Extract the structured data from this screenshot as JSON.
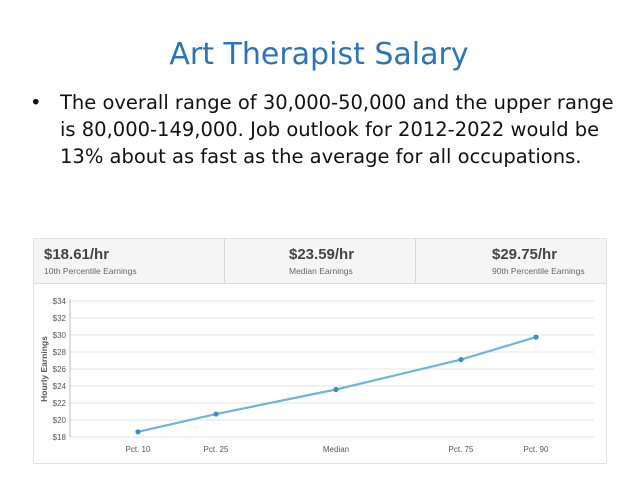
{
  "slide": {
    "title": "Art Therapist Salary",
    "bullet_marker": "•",
    "bullet_text": "The overall range of 30,000-50,000 and the upper range is 80,000-149,000.  Job outlook for 2012-2022 would be 13% about as fast as the average for all occupations."
  },
  "stats": [
    {
      "value": "$18.61/hr",
      "label": "10th Percentile Earnings"
    },
    {
      "value": "$23.59/hr",
      "label": "Median Earnings"
    },
    {
      "value": "$29.75/hr",
      "label": "90th Percentile Earnings"
    }
  ],
  "colors": {
    "title": "#2e74b5",
    "line": "#6fb4da",
    "point": "#3a8fc4"
  },
  "chart_data": {
    "type": "line",
    "categories": [
      "Pct. 10",
      "Pct. 25",
      "Median",
      "Pct. 75",
      "Pct. 90"
    ],
    "values": [
      18.61,
      20.7,
      23.59,
      27.1,
      29.75
    ],
    "title": "",
    "xlabel": "",
    "ylabel": "Hourly Earnings",
    "ylim": [
      18,
      34
    ],
    "yticks": [
      "$18",
      "$20",
      "$22",
      "$24",
      "$26",
      "$28",
      "$30",
      "$32",
      "$34"
    ],
    "grid": true
  }
}
